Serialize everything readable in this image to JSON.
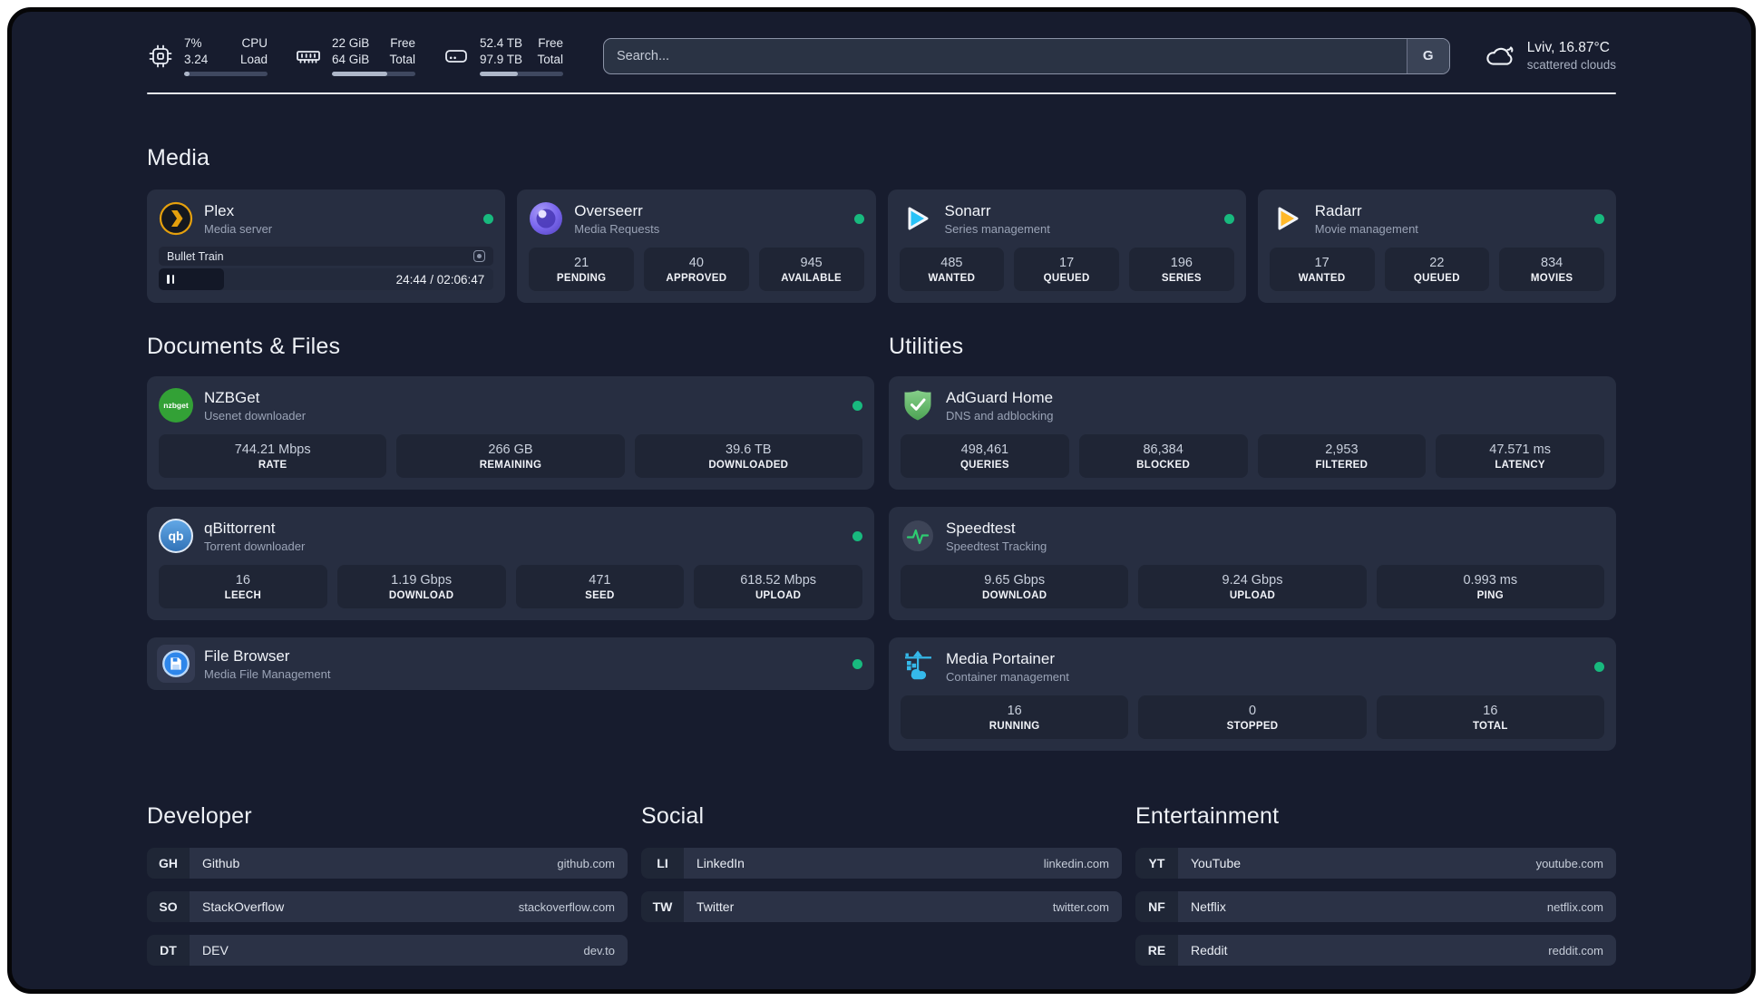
{
  "header": {
    "stats": {
      "cpu": {
        "value_top": "7%",
        "value_bottom": "3.24",
        "label_top": "CPU",
        "label_bottom": "Load",
        "progress": 7
      },
      "ram": {
        "value_top": "22 GiB",
        "value_bottom": "64 GiB",
        "label_top": "Free",
        "label_bottom": "Total",
        "progress": 66
      },
      "disk": {
        "value_top": "52.4 TB",
        "value_bottom": "97.9 TB",
        "label_top": "Free",
        "label_bottom": "Total",
        "progress": 46
      }
    },
    "search": {
      "placeholder": "Search...",
      "engine": "G"
    },
    "weather": {
      "title": "Lviv, 16.87°C",
      "subtitle": "scattered clouds"
    }
  },
  "titles": {
    "media": "Media",
    "documents": "Documents & Files",
    "utilities": "Utilities",
    "developer": "Developer",
    "social": "Social",
    "entertainment": "Entertainment"
  },
  "apps": {
    "plex": {
      "name": "Plex",
      "desc": "Media server",
      "online": true,
      "media": {
        "title": "Bullet Train",
        "time": "24:44 / 02:06:47",
        "progress": 19.5
      }
    },
    "overseerr": {
      "name": "Overseerr",
      "desc": "Media Requests",
      "online": true,
      "stats": [
        {
          "value": "21",
          "label": "PENDING"
        },
        {
          "value": "40",
          "label": "APPROVED"
        },
        {
          "value": "945",
          "label": "AVAILABLE"
        }
      ]
    },
    "sonarr": {
      "name": "Sonarr",
      "desc": "Series management",
      "online": true,
      "stats": [
        {
          "value": "485",
          "label": "WANTED"
        },
        {
          "value": "17",
          "label": "QUEUED"
        },
        {
          "value": "196",
          "label": "SERIES"
        }
      ]
    },
    "radarr": {
      "name": "Radarr",
      "desc": "Movie management",
      "online": true,
      "stats": [
        {
          "value": "17",
          "label": "WANTED"
        },
        {
          "value": "22",
          "label": "QUEUED"
        },
        {
          "value": "834",
          "label": "MOVIES"
        }
      ]
    },
    "nzbget": {
      "name": "NZBGet",
      "desc": "Usenet downloader",
      "online": true,
      "icon_text": "nzbget",
      "stats": [
        {
          "value": "744.21 Mbps",
          "label": "RATE"
        },
        {
          "value": "266 GB",
          "label": "REMAINING"
        },
        {
          "value": "39.6 TB",
          "label": "DOWNLOADED"
        }
      ]
    },
    "qbittorrent": {
      "name": "qBittorrent",
      "desc": "Torrent downloader",
      "online": true,
      "icon_text": "qb",
      "stats": [
        {
          "value": "16",
          "label": "LEECH"
        },
        {
          "value": "1.19 Gbps",
          "label": "DOWNLOAD"
        },
        {
          "value": "471",
          "label": "SEED"
        },
        {
          "value": "618.52 Mbps",
          "label": "UPLOAD"
        }
      ]
    },
    "filebrowser": {
      "name": "File Browser",
      "desc": "Media File Management",
      "online": true
    },
    "adguard": {
      "name": "AdGuard Home",
      "desc": "DNS and adblocking",
      "online": false,
      "stats": [
        {
          "value": "498,461",
          "label": "QUERIES"
        },
        {
          "value": "86,384",
          "label": "BLOCKED"
        },
        {
          "value": "2,953",
          "label": "FILTERED"
        },
        {
          "value": "47.571 ms",
          "label": "LATENCY"
        }
      ]
    },
    "speedtest": {
      "name": "Speedtest",
      "desc": "Speedtest Tracking",
      "online": false,
      "stats": [
        {
          "value": "9.65 Gbps",
          "label": "DOWNLOAD"
        },
        {
          "value": "9.24 Gbps",
          "label": "UPLOAD"
        },
        {
          "value": "0.993 ms",
          "label": "PING"
        }
      ]
    },
    "portainer": {
      "name": "Media Portainer",
      "desc": "Container management",
      "online": true,
      "stats": [
        {
          "value": "16",
          "label": "RUNNING"
        },
        {
          "value": "0",
          "label": "STOPPED"
        },
        {
          "value": "16",
          "label": "TOTAL"
        }
      ]
    }
  },
  "bookmarks": {
    "developer": [
      {
        "abbr": "GH",
        "name": "Github",
        "url": "github.com"
      },
      {
        "abbr": "SO",
        "name": "StackOverflow",
        "url": "stackoverflow.com"
      },
      {
        "abbr": "DT",
        "name": "DEV",
        "url": "dev.to"
      }
    ],
    "social": [
      {
        "abbr": "LI",
        "name": "LinkedIn",
        "url": "linkedin.com"
      },
      {
        "abbr": "TW",
        "name": "Twitter",
        "url": "twitter.com"
      }
    ],
    "entertainment": [
      {
        "abbr": "YT",
        "name": "YouTube",
        "url": "youtube.com"
      },
      {
        "abbr": "NF",
        "name": "Netflix",
        "url": "netflix.com"
      },
      {
        "abbr": "RE",
        "name": "Reddit",
        "url": "reddit.com"
      }
    ]
  },
  "colors": {
    "background": "#171c2e",
    "card": "#272e41",
    "stat_box": "#1f2535",
    "status_online": "#18b97e",
    "plex_gold": "#e5a00d",
    "sonarr_blue": "#29c2f7",
    "radarr_yellow": "#ffb829",
    "overseerr_purple": "#7b68ee",
    "nzbget_green": "#33a136",
    "adguard_green": "#68bc71",
    "portainer_blue": "#35b9ea",
    "speedtest_green": "#2ecc71"
  }
}
